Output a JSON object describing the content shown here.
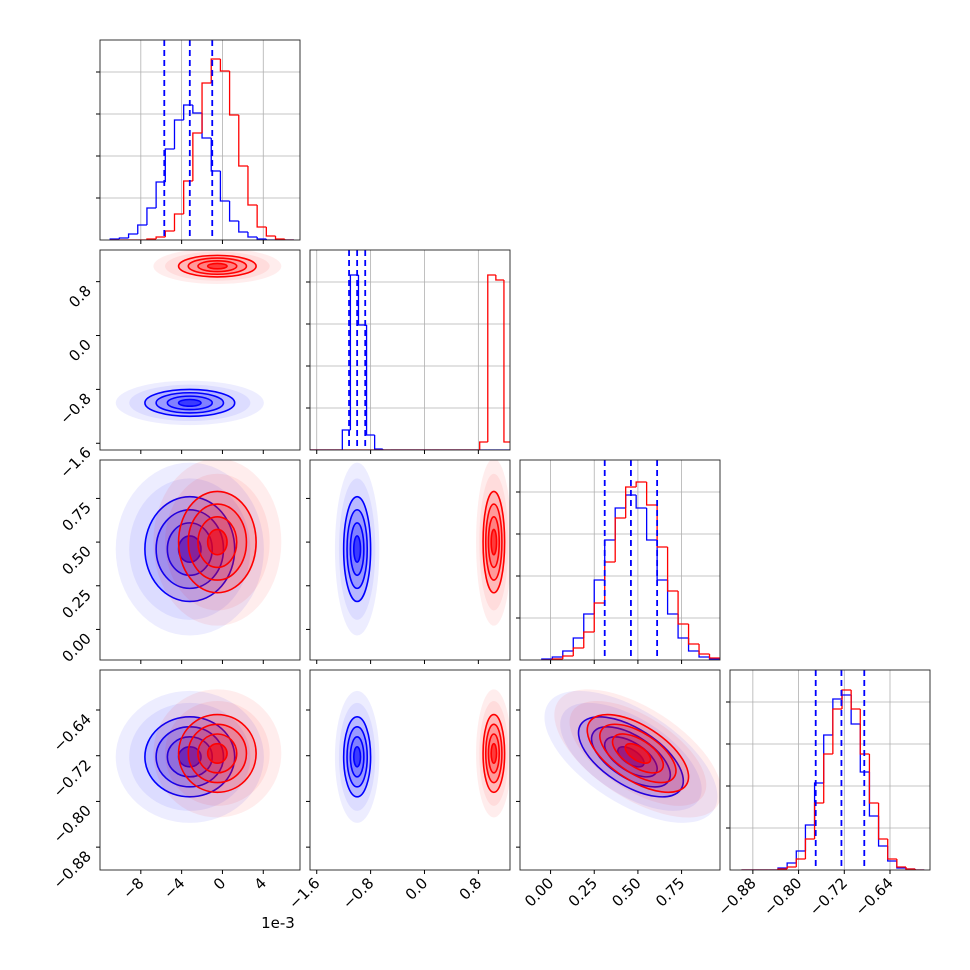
{
  "chart_data": {
    "type": "corner",
    "offset_text": "1e-3",
    "colors": [
      "#0000ff",
      "#ff0000"
    ],
    "quantile_color": "#0000ff",
    "levels": [
      0.5,
      1,
      1.5,
      2
    ],
    "params": [
      {
        "lim": [
          -12,
          7.6
        ],
        "ticks": [
          {
            "value": -8,
            "label": "−8"
          },
          {
            "value": -4,
            "label": "−4"
          },
          0,
          4
        ]
      },
      {
        "lim": [
          -1.7,
          1.27
        ],
        "ticks": [
          {
            "value": -1.6,
            "label": "−1.6"
          },
          {
            "value": -0.8,
            "label": "−0.8"
          },
          {
            "value": 0,
            "label": "0.0"
          },
          0.8
        ]
      },
      {
        "lim": [
          -0.175,
          0.97
        ],
        "ticks": [
          {
            "value": 0,
            "label": "0.00"
          },
          0.25,
          {
            "value": 0.5,
            "label": "0.50"
          },
          0.75
        ]
      },
      {
        "lim": [
          -0.92,
          -0.57
        ],
        "ticks": [
          {
            "value": -0.88,
            "label": "−0.88"
          },
          {
            "value": -0.8,
            "label": "−0.80"
          },
          {
            "value": -0.72,
            "label": "−0.72"
          },
          {
            "value": -0.64,
            "label": "−0.64"
          }
        ]
      }
    ],
    "hists": [
      {
        "ylim": [
          0,
          200
        ],
        "yticks": [
          42,
          84,
          126,
          168
        ],
        "grid": true,
        "bins": [
          -11,
          -10.1,
          -9.2,
          -8.3,
          -7.4,
          -6.5,
          -5.6,
          -4.7,
          -3.8,
          -2.9,
          -2,
          -1.1,
          -0.2,
          0.7,
          1.6,
          2.5,
          3.4,
          4.3,
          5.2,
          6.1,
          7
        ],
        "series": [
          {
            "values": [
              1,
              2,
              6,
              15,
              32,
              58,
              91,
              120,
              135,
              127,
              102,
              69,
              39,
              19,
              8,
              3,
              1,
              0,
              0,
              0
            ]
          },
          {
            "values": [
              0,
              0,
              0,
              0,
              1,
              3,
              9,
              26,
              59,
              107,
              157,
              181,
              169,
              125,
              74,
              35,
              13,
              4,
              1,
              0
            ]
          }
        ],
        "quantiles": [
          -5.7,
          -3.2,
          -1.0
        ]
      },
      {
        "ylim": [
          0,
          200
        ],
        "yticks": [
          42,
          84,
          126,
          168
        ],
        "grid": true,
        "bins": [
          -1.7,
          -1.58,
          -1.46,
          -1.34,
          -1.22,
          -1.1,
          -0.98,
          -0.86,
          -0.74,
          -0.62,
          -0.5,
          -0.38,
          -0.26,
          -0.14,
          -0.02,
          0.1,
          0.22,
          0.34,
          0.46,
          0.58,
          0.7,
          0.82,
          0.94,
          1.06,
          1.18,
          1.3
        ],
        "series": [
          {
            "values": [
              0,
              0,
              0,
              0,
              20,
              175,
              125,
              15,
              1,
              0,
              0,
              0,
              0,
              0,
              0,
              0,
              0,
              0,
              0,
              0,
              0,
              0,
              0,
              0,
              0
            ]
          },
          {
            "values": [
              0,
              0,
              0,
              0,
              0,
              0,
              0,
              0,
              0,
              0,
              0,
              0,
              0,
              0,
              0,
              0,
              0,
              0,
              0,
              0,
              0,
              8,
              175,
              170,
              8
            ]
          }
        ],
        "quantiles": [
          -1.12,
          -1.0,
          -0.88
        ]
      },
      {
        "ylim": [
          0,
          200
        ],
        "yticks": [
          42,
          84,
          126,
          168
        ],
        "grid": true,
        "bins": [
          -0.05,
          0.01,
          0.07,
          0.13,
          0.19,
          0.25,
          0.31,
          0.37,
          0.43,
          0.49,
          0.55,
          0.61,
          0.67,
          0.73,
          0.79,
          0.85,
          0.91,
          0.97
        ],
        "series": [
          {
            "values": [
              1,
              3,
              9,
              22,
              46,
              80,
              120,
              152,
              165,
              152,
              120,
              80,
              46,
              22,
              9,
              3,
              1
            ]
          },
          {
            "values": [
              0,
              1,
              4,
              12,
              28,
              57,
              98,
              142,
              173,
              178,
              155,
              113,
              69,
              36,
              16,
              6,
              2
            ]
          }
        ],
        "quantiles": [
          0.31,
          0.46,
          0.61
        ]
      },
      {
        "ylim": [
          0,
          200
        ],
        "yticks": [
          42,
          84,
          126,
          168
        ],
        "grid": true,
        "bins": [
          -0.9,
          -0.884,
          -0.868,
          -0.852,
          -0.836,
          -0.82,
          -0.804,
          -0.788,
          -0.772,
          -0.756,
          -0.74,
          -0.724,
          -0.708,
          -0.692,
          -0.676,
          -0.66,
          -0.644,
          -0.628,
          -0.612,
          -0.596,
          -0.58
        ],
        "series": [
          {
            "values": [
              0,
              0,
              0,
              0,
              2,
              7,
              19,
              45,
              87,
              135,
              171,
              175,
              146,
              98,
              54,
              24,
              9,
              2,
              1,
              0
            ]
          },
          {
            "values": [
              0,
              0,
              0,
              0,
              1,
              3,
              11,
              31,
              67,
              116,
              161,
              180,
              161,
              116,
              67,
              31,
              11,
              3,
              1,
              0
            ]
          }
        ],
        "quantiles": [
          -0.77,
          -0.725,
          -0.685
        ]
      }
    ],
    "gaussians": [
      {
        "mean": [
          -3.2,
          -1.0,
          0.46,
          -0.722
        ],
        "sd": [
          2.2,
          0.1,
          0.15,
          0.035
        ],
        "corr": [
          0,
          0,
          0,
          0,
          0,
          -0.6
        ]
      },
      {
        "mean": [
          -0.5,
          1.03,
          0.5,
          -0.716
        ],
        "sd": [
          1.9,
          0.08,
          0.145,
          0.034
        ],
        "corr": [
          0,
          0,
          0,
          0,
          0,
          -0.6
        ]
      }
    ]
  }
}
